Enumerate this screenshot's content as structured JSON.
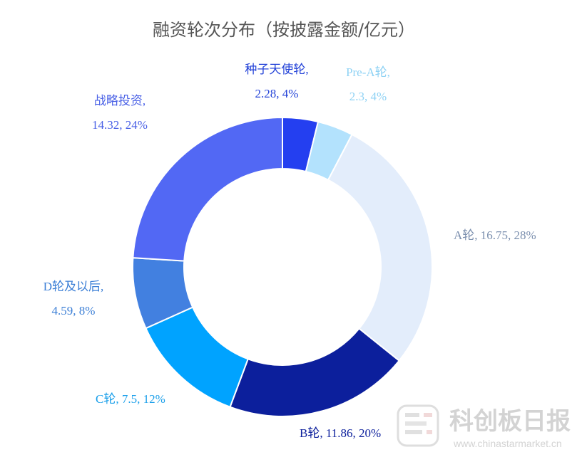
{
  "chart_data": {
    "type": "pie",
    "subtype": "donut",
    "title": "融资轮次分布（按披露金额/亿元）",
    "slices": [
      {
        "name": "种子天使轮",
        "value": 2.28,
        "percent": "4%",
        "color": "#243ff0",
        "label_color": "#2443d8"
      },
      {
        "name": "Pre-A轮",
        "value": 2.3,
        "percent": "4%",
        "color": "#b3e2fd",
        "label_color": "#8fd2f4"
      },
      {
        "name": "A轮",
        "value": 16.75,
        "percent": "28%",
        "color": "#e3edfb",
        "label_color": "#7b8fae"
      },
      {
        "name": "B轮",
        "value": 11.86,
        "percent": "20%",
        "color": "#0c1f9c",
        "label_color": "#0c1f9c"
      },
      {
        "name": "C轮",
        "value": 7.5,
        "percent": "12%",
        "color": "#00a3ff",
        "label_color": "#1a9fea"
      },
      {
        "name": "D轮及以后",
        "value": 4.59,
        "percent": "8%",
        "color": "#4280e0",
        "label_color": "#3c7fd6"
      },
      {
        "name": "战略投资",
        "value": 14.32,
        "percent": "24%",
        "color": "#5268f4",
        "label_color": "#4a61e6"
      }
    ],
    "labels": [
      {
        "line1": "种子天使轮,",
        "line2": "2.28, 4%"
      },
      {
        "line1": "Pre-A轮,",
        "line2": "2.3, 4%"
      },
      {
        "line1": "A轮, 16.75, 28%"
      },
      {
        "line1": "B轮, 11.86, 20%"
      },
      {
        "line1": "C轮, 7.5, 12%"
      },
      {
        "line1": "D轮及以后,",
        "line2": "4.59, 8%"
      },
      {
        "line1": "战略投资,",
        "line2": "14.32, 24%"
      }
    ]
  },
  "watermark": {
    "text": "科创板日报",
    "url": "www.chinastarmarket.cn"
  }
}
